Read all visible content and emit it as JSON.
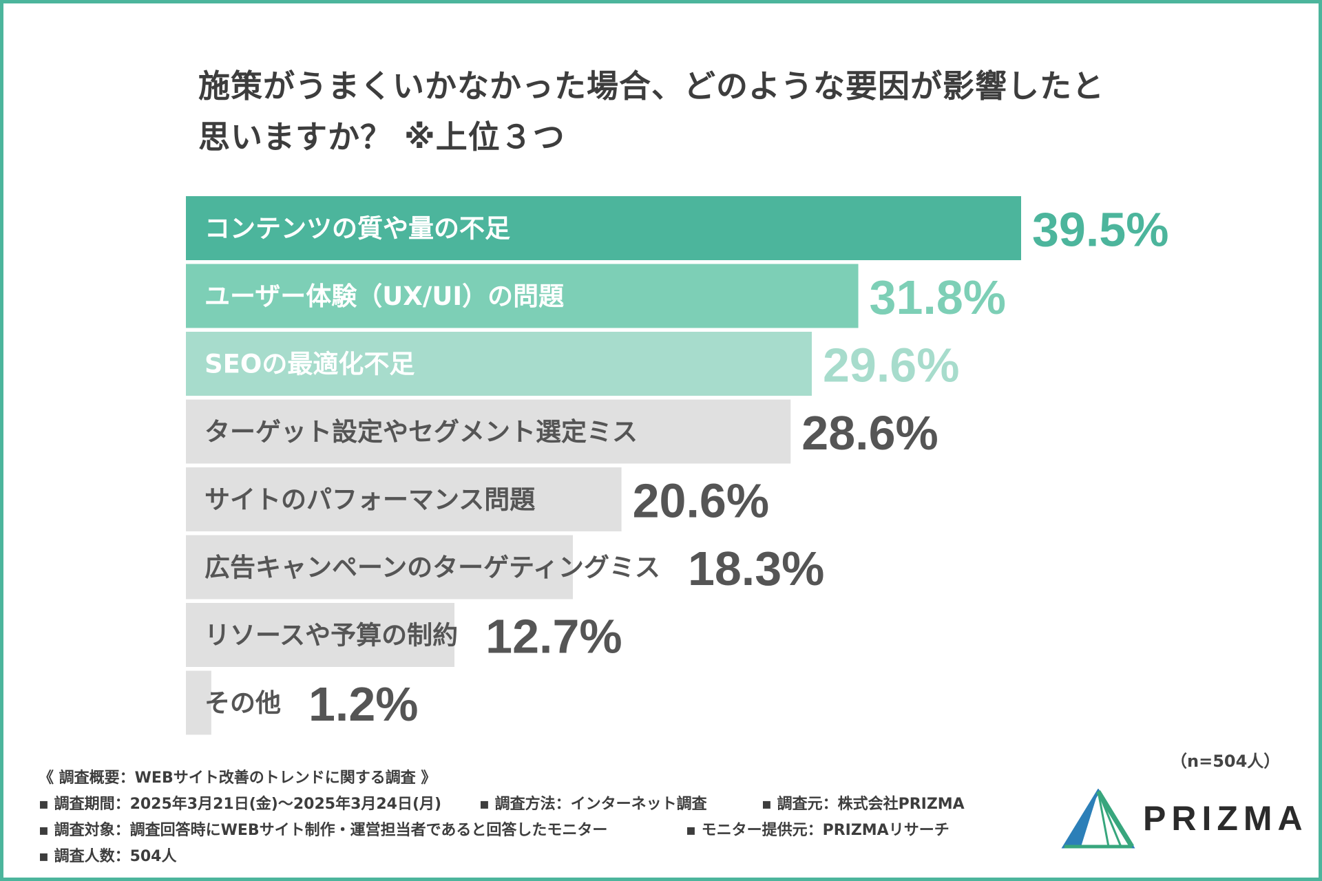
{
  "title_line1": "施策がうまくいかなかった場合、どのような要因が影響したと",
  "title_line2": "思いますか？ ※上位３つ",
  "sample_note": "（n=504人）",
  "colors": {
    "frame": "#4cb59c",
    "bar_top": "#4cb59c",
    "bar_second": "#7dcfb6",
    "bar_third": "#a7dccc",
    "bar_other": "#e0e0e0",
    "label_light": "#ffffff",
    "label_dark": "#555555",
    "value_dark": "#555555"
  },
  "chart_data": {
    "type": "bar",
    "orientation": "horizontal",
    "title": "施策がうまくいかなかった場合、どのような要因が影響したと思いますか？ ※上位３つ",
    "unit": "%",
    "xlim": [
      0,
      50
    ],
    "categories": [
      "コンテンツの質や量の不足",
      "ユーザー体験（UX/UI）の問題",
      "SEOの最適化不足",
      "ターゲット設定やセグメント選定ミス",
      "サイトのパフォーマンス問題",
      "広告キャンペーンのターゲティングミス",
      "リソースや予算の制約",
      "その他"
    ],
    "values": [
      39.5,
      31.8,
      29.6,
      28.6,
      20.6,
      18.3,
      12.7,
      1.2
    ],
    "value_labels": [
      "39.5%",
      "31.8%",
      "29.6%",
      "28.6%",
      "20.6%",
      "18.3%",
      "12.7%",
      "1.2%"
    ]
  },
  "footer": {
    "survey_title": "《 調査概要：WEBサイト改善のトレンドに関する調査 》",
    "period": "▪ 調査期間：2025年3月21日(金)〜2025年3月24日(月)",
    "method": "▪ 調査方法：インターネット調査",
    "source": "▪ 調査元：株式会社PRIZMA",
    "target": "▪ 調査対象：調査回答時にWEBサイト制作・運営担当者であると回答したモニター",
    "provider": "▪ モニター提供元：PRIZMAリサーチ",
    "count": "▪ 調査人数：504人"
  },
  "logo": {
    "text": "PRIZMA"
  }
}
